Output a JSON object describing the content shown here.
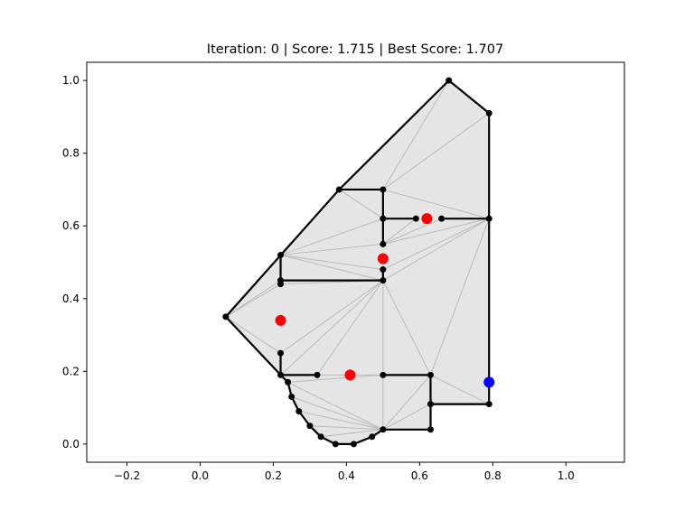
{
  "chart_data": {
    "type": "scatter",
    "title": "Iteration: 0 | Score: 1.715 | Best Score: 1.707",
    "xlabel": "",
    "ylabel": "",
    "xlim": [
      -0.31,
      1.16
    ],
    "ylim": [
      -0.05,
      1.05
    ],
    "grid": false,
    "x_ticks": [
      -0.2,
      0.0,
      0.2,
      0.4,
      0.6,
      0.8,
      1.0
    ],
    "x_tick_labels": [
      "−0.2",
      "0.0",
      "0.2",
      "0.4",
      "0.6",
      "0.8",
      "1.0"
    ],
    "y_ticks": [
      0.0,
      0.2,
      0.4,
      0.6,
      0.8,
      1.0
    ],
    "y_tick_labels": [
      "0.0",
      "0.2",
      "0.4",
      "0.6",
      "0.8",
      "1.0"
    ],
    "polygon_fill": "#e5e5e5",
    "boundary": [
      [
        0.07,
        0.35
      ],
      [
        0.38,
        0.7
      ],
      [
        0.68,
        1.0
      ],
      [
        0.79,
        0.91
      ],
      [
        0.79,
        0.11
      ],
      [
        0.63,
        0.11
      ],
      [
        0.63,
        0.04
      ],
      [
        0.5,
        0.04
      ],
      [
        0.47,
        0.02
      ],
      [
        0.42,
        0.0
      ],
      [
        0.37,
        0.0
      ],
      [
        0.33,
        0.02
      ],
      [
        0.3,
        0.05
      ],
      [
        0.27,
        0.09
      ],
      [
        0.25,
        0.13
      ],
      [
        0.24,
        0.17
      ],
      [
        0.22,
        0.19
      ]
    ],
    "wall_segments": [
      [
        [
          0.38,
          0.7
        ],
        [
          0.5,
          0.7
        ]
      ],
      [
        [
          0.5,
          0.7
        ],
        [
          0.5,
          0.62
        ]
      ],
      [
        [
          0.5,
          0.62
        ],
        [
          0.59,
          0.62
        ]
      ],
      [
        [
          0.66,
          0.62
        ],
        [
          0.79,
          0.62
        ]
      ],
      [
        [
          0.5,
          0.55
        ],
        [
          0.5,
          0.62
        ]
      ],
      [
        [
          0.22,
          0.52
        ],
        [
          0.22,
          0.44
        ]
      ],
      [
        [
          0.22,
          0.45
        ],
        [
          0.5,
          0.45
        ]
      ],
      [
        [
          0.5,
          0.45
        ],
        [
          0.5,
          0.48
        ]
      ],
      [
        [
          0.22,
          0.25
        ],
        [
          0.22,
          0.19
        ]
      ],
      [
        [
          0.22,
          0.19
        ],
        [
          0.32,
          0.19
        ]
      ],
      [
        [
          0.5,
          0.19
        ],
        [
          0.63,
          0.19
        ]
      ],
      [
        [
          0.63,
          0.19
        ],
        [
          0.63,
          0.11
        ]
      ],
      [
        [
          0.63,
          0.11
        ],
        [
          0.79,
          0.11
        ]
      ]
    ],
    "vertices": [
      [
        0.07,
        0.35
      ],
      [
        0.38,
        0.7
      ],
      [
        0.5,
        0.7
      ],
      [
        0.68,
        1.0
      ],
      [
        0.79,
        0.91
      ],
      [
        0.79,
        0.62
      ],
      [
        0.79,
        0.11
      ],
      [
        0.63,
        0.11
      ],
      [
        0.63,
        0.04
      ],
      [
        0.5,
        0.04
      ],
      [
        0.47,
        0.02
      ],
      [
        0.42,
        0.0
      ],
      [
        0.37,
        0.0
      ],
      [
        0.33,
        0.02
      ],
      [
        0.3,
        0.05
      ],
      [
        0.27,
        0.09
      ],
      [
        0.25,
        0.13
      ],
      [
        0.24,
        0.17
      ],
      [
        0.22,
        0.19
      ],
      [
        0.22,
        0.25
      ],
      [
        0.22,
        0.44
      ],
      [
        0.22,
        0.45
      ],
      [
        0.22,
        0.52
      ],
      [
        0.5,
        0.62
      ],
      [
        0.59,
        0.62
      ],
      [
        0.66,
        0.62
      ],
      [
        0.5,
        0.55
      ],
      [
        0.5,
        0.48
      ],
      [
        0.5,
        0.45
      ],
      [
        0.32,
        0.19
      ],
      [
        0.5,
        0.19
      ],
      [
        0.63,
        0.19
      ]
    ],
    "triangulation_edges": [
      [
        [
          0.5,
          0.7
        ],
        [
          0.68,
          1.0
        ]
      ],
      [
        [
          0.5,
          0.7
        ],
        [
          0.79,
          0.91
        ]
      ],
      [
        [
          0.5,
          0.7
        ],
        [
          0.79,
          0.62
        ]
      ],
      [
        [
          0.38,
          0.7
        ],
        [
          0.5,
          0.62
        ]
      ],
      [
        [
          0.38,
          0.7
        ],
        [
          0.22,
          0.52
        ]
      ],
      [
        [
          0.5,
          0.62
        ],
        [
          0.22,
          0.52
        ]
      ],
      [
        [
          0.5,
          0.55
        ],
        [
          0.22,
          0.52
        ]
      ],
      [
        [
          0.5,
          0.48
        ],
        [
          0.22,
          0.52
        ]
      ],
      [
        [
          0.5,
          0.45
        ],
        [
          0.22,
          0.52
        ]
      ],
      [
        [
          0.59,
          0.62
        ],
        [
          0.5,
          0.55
        ]
      ],
      [
        [
          0.66,
          0.62
        ],
        [
          0.5,
          0.55
        ]
      ],
      [
        [
          0.79,
          0.62
        ],
        [
          0.5,
          0.55
        ]
      ],
      [
        [
          0.79,
          0.62
        ],
        [
          0.5,
          0.48
        ]
      ],
      [
        [
          0.79,
          0.62
        ],
        [
          0.5,
          0.45
        ]
      ],
      [
        [
          0.79,
          0.62
        ],
        [
          0.63,
          0.19
        ]
      ],
      [
        [
          0.79,
          0.62
        ],
        [
          0.79,
          0.11
        ]
      ],
      [
        [
          0.63,
          0.19
        ],
        [
          0.79,
          0.11
        ]
      ],
      [
        [
          0.5,
          0.45
        ],
        [
          0.63,
          0.19
        ]
      ],
      [
        [
          0.5,
          0.45
        ],
        [
          0.5,
          0.19
        ]
      ],
      [
        [
          0.5,
          0.45
        ],
        [
          0.32,
          0.19
        ]
      ],
      [
        [
          0.5,
          0.45
        ],
        [
          0.22,
          0.25
        ]
      ],
      [
        [
          0.5,
          0.45
        ],
        [
          0.22,
          0.19
        ]
      ],
      [
        [
          0.22,
          0.44
        ],
        [
          0.07,
          0.35
        ]
      ],
      [
        [
          0.22,
          0.45
        ],
        [
          0.07,
          0.35
        ]
      ],
      [
        [
          0.22,
          0.52
        ],
        [
          0.07,
          0.35
        ]
      ],
      [
        [
          0.22,
          0.25
        ],
        [
          0.07,
          0.35
        ]
      ],
      [
        [
          0.22,
          0.44
        ],
        [
          0.5,
          0.45
        ]
      ],
      [
        [
          0.22,
          0.19
        ],
        [
          0.5,
          0.19
        ]
      ],
      [
        [
          0.24,
          0.17
        ],
        [
          0.5,
          0.19
        ]
      ],
      [
        [
          0.24,
          0.17
        ],
        [
          0.5,
          0.04
        ]
      ],
      [
        [
          0.25,
          0.13
        ],
        [
          0.5,
          0.04
        ]
      ],
      [
        [
          0.27,
          0.09
        ],
        [
          0.5,
          0.04
        ]
      ],
      [
        [
          0.3,
          0.05
        ],
        [
          0.5,
          0.04
        ]
      ],
      [
        [
          0.33,
          0.02
        ],
        [
          0.5,
          0.04
        ]
      ],
      [
        [
          0.5,
          0.19
        ],
        [
          0.5,
          0.04
        ]
      ],
      [
        [
          0.63,
          0.19
        ],
        [
          0.5,
          0.04
        ]
      ],
      [
        [
          0.63,
          0.19
        ],
        [
          0.63,
          0.04
        ]
      ],
      [
        [
          0.63,
          0.11
        ],
        [
          0.5,
          0.04
        ]
      ]
    ],
    "red_points": [
      [
        0.62,
        0.62
      ],
      [
        0.5,
        0.51
      ],
      [
        0.22,
        0.34
      ],
      [
        0.41,
        0.19
      ]
    ],
    "blue_points": [
      [
        0.79,
        0.17
      ]
    ],
    "colors": {
      "fill": "#e5e5e5",
      "triangulation": "#bbbbbb",
      "wall": "#000000",
      "vertex": "#000000",
      "red": "#ff0000",
      "blue": "#0000ff"
    }
  }
}
